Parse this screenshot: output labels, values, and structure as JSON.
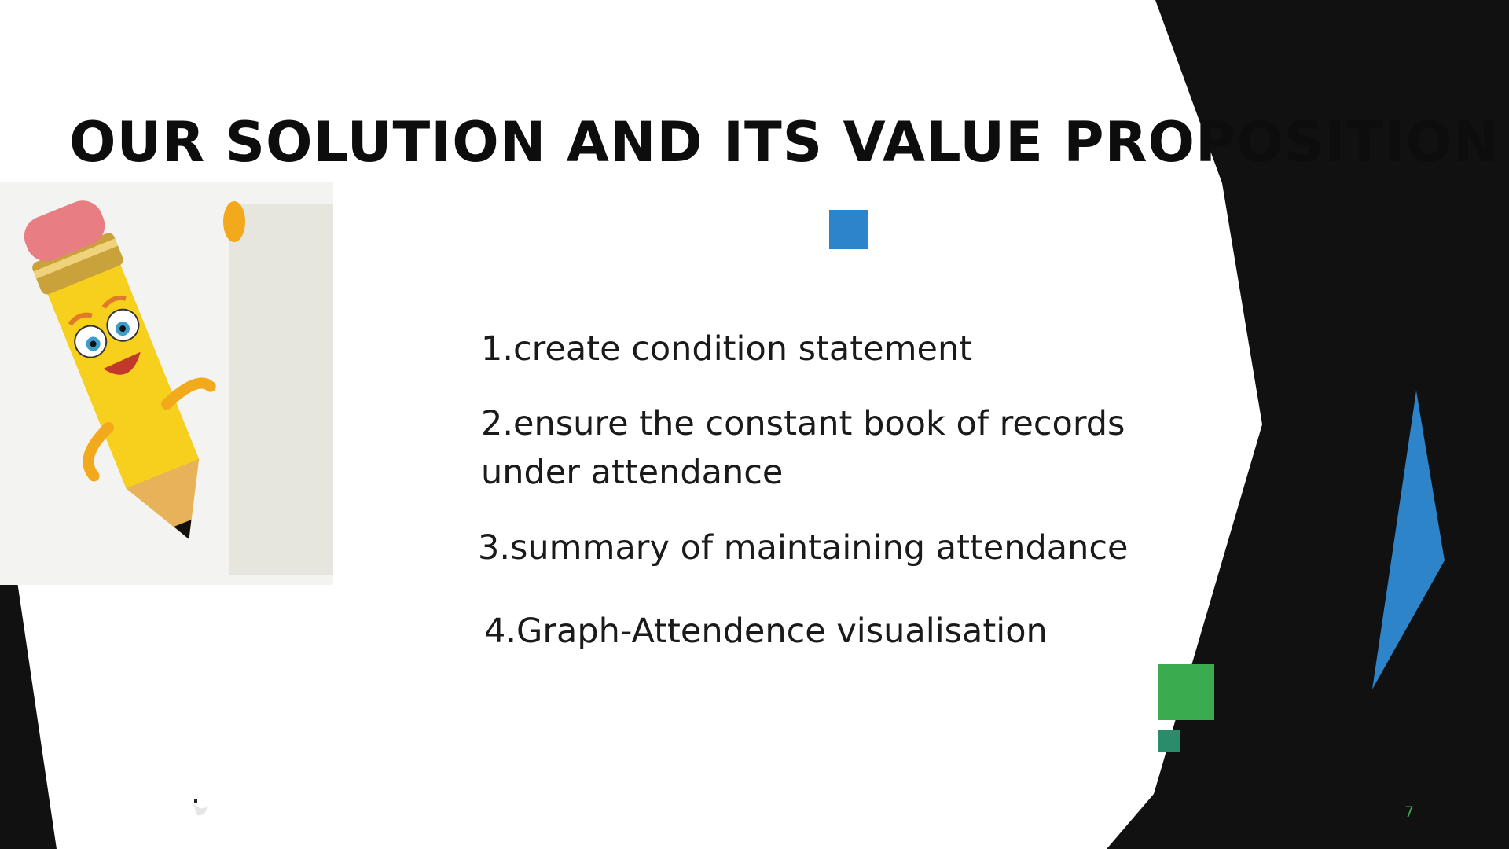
{
  "slide": {
    "title": "OUR SOLUTION AND ITS VALUE PROPOSITION",
    "items": [
      "1.create condition statement",
      "2.ensure the constant book of records",
      "under attendance",
      "3.summary of maintaining attendance",
      "4.Graph-Attendence visualisation"
    ],
    "page_number": "7"
  },
  "colors": {
    "background": "#ffffff",
    "dark_shape": "#111111",
    "accent_blue": "#2e84c8",
    "accent_green": "#3aab4f",
    "accent_teal": "#2a8c6a"
  },
  "icons": {
    "illustration": "cartoon-pencil-illustration"
  }
}
